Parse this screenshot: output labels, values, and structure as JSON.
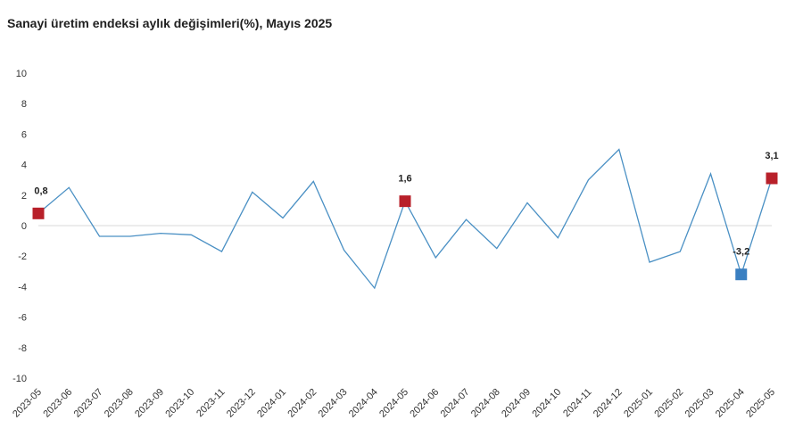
{
  "chart_data": {
    "type": "line",
    "title": "Sanayi üretim endeksi aylık değişimleri(%), Mayıs 2025",
    "xlabel": "",
    "ylabel": "",
    "ylim": [
      -10,
      10
    ],
    "yticks": [
      10,
      8,
      6,
      4,
      2,
      0,
      -2,
      -4,
      -6,
      -8,
      -10
    ],
    "grid": false,
    "legend": "none",
    "categories": [
      "2023-05",
      "2023-06",
      "2023-07",
      "2023-08",
      "2023-09",
      "2023-10",
      "2023-11",
      "2023-12",
      "2024-01",
      "2024-02",
      "2024-03",
      "2024-04",
      "2024-05",
      "2024-06",
      "2024-07",
      "2024-08",
      "2024-09",
      "2024-10",
      "2024-11",
      "2024-12",
      "2025-01",
      "2025-02",
      "2025-03",
      "2025-04",
      "2025-05"
    ],
    "series": [
      {
        "values": [
          0.8,
          2.5,
          -0.7,
          -0.7,
          -0.5,
          -0.6,
          -1.7,
          2.2,
          0.5,
          2.9,
          -1.6,
          -4.1,
          1.6,
          -2.1,
          0.4,
          -1.5,
          1.5,
          -0.8,
          3.0,
          5.0,
          -2.4,
          -1.7,
          3.4,
          -3.2,
          3.1
        ],
        "color": "#4a90c4"
      }
    ],
    "highlights": [
      {
        "category": "2023-05",
        "value": 0.8,
        "label": "0,8",
        "color": "#b8202a"
      },
      {
        "category": "2024-05",
        "value": 1.6,
        "label": "1,6",
        "color": "#b8202a"
      },
      {
        "category": "2025-04",
        "value": -3.2,
        "label": "-3,2",
        "color": "#3a7fc1"
      },
      {
        "category": "2025-05",
        "value": 3.1,
        "label": "3,1",
        "color": "#b8202a"
      }
    ],
    "zero_line_color": "#d9d9d9"
  }
}
